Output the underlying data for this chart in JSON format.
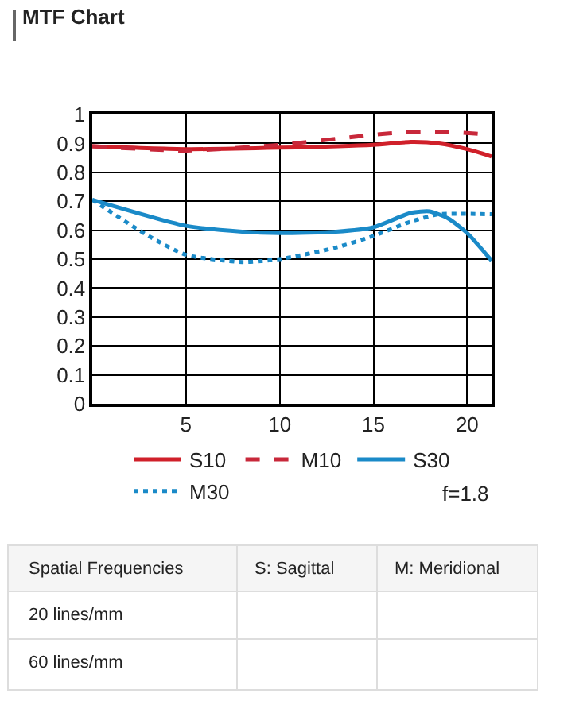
{
  "chart_data": {
    "type": "line",
    "title": "MTF Chart",
    "xlim": [
      0,
      21.3
    ],
    "xticks": [
      5,
      10,
      15,
      20
    ],
    "ylim": [
      0,
      1
    ],
    "yticks": [
      0,
      0.1,
      0.2,
      0.3,
      0.4,
      0.5,
      0.6,
      0.7,
      0.8,
      0.9,
      1
    ],
    "grid": true,
    "legend": "bottom",
    "marker": "none",
    "series": [
      {
        "name": "S10",
        "color": "#d0202a",
        "line_style": "solid",
        "x": [
          0,
          5,
          10,
          15,
          17,
          18.5,
          20,
          21.3
        ],
        "values": [
          0.89,
          0.88,
          0.885,
          0.895,
          0.905,
          0.9,
          0.88,
          0.855
        ]
      },
      {
        "name": "M10",
        "color": "#c8283a",
        "line_style": "dashed",
        "x": [
          0,
          5,
          10,
          15,
          17,
          19,
          21.3
        ],
        "values": [
          0.89,
          0.875,
          0.895,
          0.93,
          0.94,
          0.94,
          0.93
        ]
      },
      {
        "name": "S30",
        "color": "#1a8ac8",
        "line_style": "solid",
        "x": [
          0,
          5,
          8,
          10,
          13,
          15,
          17,
          18,
          19,
          20,
          21.3
        ],
        "values": [
          0.705,
          0.615,
          0.595,
          0.59,
          0.595,
          0.61,
          0.66,
          0.665,
          0.64,
          0.59,
          0.495
        ]
      },
      {
        "name": "M30",
        "color": "#1a8ac8",
        "line_style": "dotted",
        "x": [
          0,
          3,
          5,
          8,
          10,
          13,
          15,
          17,
          18.5,
          21.3
        ],
        "values": [
          0.705,
          0.58,
          0.515,
          0.49,
          0.5,
          0.54,
          0.58,
          0.63,
          0.655,
          0.655
        ]
      }
    ],
    "annotations": [
      "f=1.8",
      "Spatial Frequencies",
      "S: Sagittal",
      "M: Meridional",
      "20 lines/mm",
      "60 lines/mm"
    ]
  }
}
